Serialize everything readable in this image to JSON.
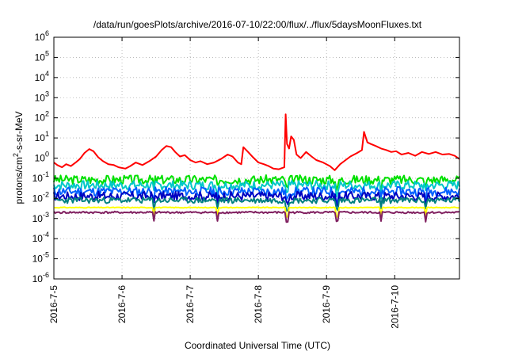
{
  "chart_data": {
    "type": "line",
    "title": "/data/run/goesPlots/archive/2016-07-10/22:00/flux/../flux/5daysMoonFluxes.txt",
    "xlabel": "Coordinated Universal Time (UTC)",
    "ylabel": {
      "pre": "protons/cm",
      "sup": "2",
      "post": "-s-sr-MeV"
    },
    "yscale": "log",
    "ylim": [
      1e-06,
      1000000.0
    ],
    "xlim": [
      0,
      5.95
    ],
    "grid": true,
    "y_ticks": [
      {
        "exp": "-6"
      },
      {
        "exp": "-5"
      },
      {
        "exp": "-4"
      },
      {
        "exp": "-3"
      },
      {
        "exp": "-2"
      },
      {
        "exp": "-1"
      },
      {
        "exp": "0"
      },
      {
        "exp": "1"
      },
      {
        "exp": "2"
      },
      {
        "exp": "3"
      },
      {
        "exp": "4"
      },
      {
        "exp": "5"
      },
      {
        "exp": "6"
      }
    ],
    "x_ticks": [
      {
        "label": "2016-7-5",
        "day": 0
      },
      {
        "label": "2016-7-6",
        "day": 1
      },
      {
        "label": "2016-7-7",
        "day": 2
      },
      {
        "label": "2016-7-8",
        "day": 3
      },
      {
        "label": "2016-7-9",
        "day": 4
      },
      {
        "label": "2016-7-10",
        "day": 5
      }
    ],
    "series": [
      {
        "color": "#ff0000",
        "points": [
          [
            0.0,
            0.6
          ],
          [
            0.05,
            0.45
          ],
          [
            0.12,
            0.35
          ],
          [
            0.18,
            0.5
          ],
          [
            0.25,
            0.4
          ],
          [
            0.32,
            0.6
          ],
          [
            0.38,
            0.9
          ],
          [
            0.45,
            1.8
          ],
          [
            0.52,
            2.8
          ],
          [
            0.58,
            2.2
          ],
          [
            0.65,
            1.1
          ],
          [
            0.72,
            0.7
          ],
          [
            0.8,
            0.5
          ],
          [
            0.88,
            0.45
          ],
          [
            0.95,
            0.35
          ],
          [
            1.05,
            0.3
          ],
          [
            1.12,
            0.4
          ],
          [
            1.2,
            0.6
          ],
          [
            1.3,
            0.45
          ],
          [
            1.4,
            0.7
          ],
          [
            1.5,
            1.2
          ],
          [
            1.58,
            2.5
          ],
          [
            1.65,
            4.0
          ],
          [
            1.72,
            3.5
          ],
          [
            1.78,
            2.0
          ],
          [
            1.85,
            1.2
          ],
          [
            1.92,
            1.4
          ],
          [
            2.0,
            0.8
          ],
          [
            2.08,
            0.6
          ],
          [
            2.15,
            0.7
          ],
          [
            2.25,
            0.5
          ],
          [
            2.35,
            0.6
          ],
          [
            2.45,
            0.9
          ],
          [
            2.55,
            1.5
          ],
          [
            2.62,
            1.2
          ],
          [
            2.7,
            0.6
          ],
          [
            2.75,
            0.5
          ],
          [
            2.78,
            3.5
          ],
          [
            2.85,
            2.0
          ],
          [
            2.92,
            1.1
          ],
          [
            3.0,
            0.6
          ],
          [
            3.08,
            0.5
          ],
          [
            3.15,
            0.4
          ],
          [
            3.22,
            0.3
          ],
          [
            3.3,
            0.28
          ],
          [
            3.38,
            0.35
          ],
          [
            3.4,
            150
          ],
          [
            3.42,
            5
          ],
          [
            3.45,
            3
          ],
          [
            3.48,
            12
          ],
          [
            3.52,
            8
          ],
          [
            3.56,
            1.5
          ],
          [
            3.62,
            1.0
          ],
          [
            3.7,
            2.0
          ],
          [
            3.78,
            1.2
          ],
          [
            3.85,
            0.8
          ],
          [
            3.95,
            0.6
          ],
          [
            4.05,
            0.4
          ],
          [
            4.12,
            0.25
          ],
          [
            4.2,
            0.5
          ],
          [
            4.28,
            0.8
          ],
          [
            4.35,
            1.2
          ],
          [
            4.45,
            1.8
          ],
          [
            4.52,
            2.5
          ],
          [
            4.55,
            20
          ],
          [
            4.6,
            6
          ],
          [
            4.65,
            5
          ],
          [
            4.72,
            4
          ],
          [
            4.8,
            3
          ],
          [
            4.88,
            2.5
          ],
          [
            4.95,
            2.0
          ],
          [
            5.02,
            2.2
          ],
          [
            5.1,
            1.5
          ],
          [
            5.2,
            1.8
          ],
          [
            5.3,
            1.3
          ],
          [
            5.4,
            2.0
          ],
          [
            5.5,
            1.6
          ],
          [
            5.6,
            2.0
          ],
          [
            5.7,
            1.5
          ],
          [
            5.8,
            1.6
          ],
          [
            5.88,
            1.3
          ],
          [
            5.95,
            0.9
          ]
        ]
      },
      {
        "color": "#00e000",
        "base": 0.085,
        "amp": 0.45,
        "seed": 3
      },
      {
        "color": "#00c8c8",
        "base": 0.045,
        "amp": 0.45,
        "seed": 7
      },
      {
        "color": "#0060ff",
        "base": 0.022,
        "amp": 0.45,
        "seed": 11
      },
      {
        "color": "#0000c0",
        "base": 0.013,
        "amp": 0.45,
        "seed": 17
      },
      {
        "color": "#008080",
        "base": 0.008,
        "amp": 0.3,
        "seed": 23
      },
      {
        "color": "#ffff00",
        "base": 0.0035,
        "amp": 0.04,
        "seed": 31
      },
      {
        "color": "#802060",
        "base": 0.002,
        "amp": 0.1,
        "seed": 41
      }
    ]
  }
}
